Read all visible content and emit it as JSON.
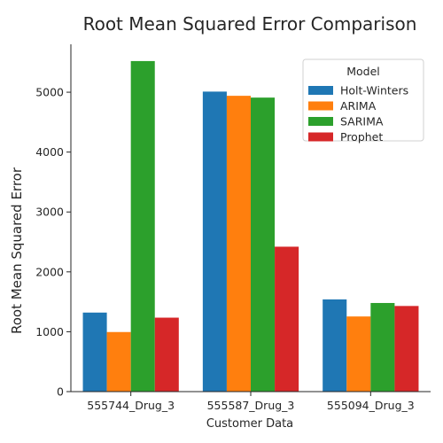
{
  "chart_data": {
    "type": "bar",
    "title": "Root Mean Squared Error Comparison",
    "xlabel": "Customer Data",
    "ylabel": "Root Mean Squared Error",
    "categories": [
      "555744_Drug_3",
      "555587_Drug_3",
      "555094_Drug_3"
    ],
    "ylim": [
      0,
      5800
    ],
    "yticks": [
      0,
      1000,
      2000,
      3000,
      4000,
      5000
    ],
    "legend": {
      "title": "Model",
      "placement": "top-right"
    },
    "grid": false,
    "series": [
      {
        "name": "Holt-Winters",
        "color": "#1f77b4",
        "values": [
          1320,
          5010,
          1540
        ]
      },
      {
        "name": "ARIMA",
        "color": "#ff7f0e",
        "values": [
          995,
          4940,
          1255
        ]
      },
      {
        "name": "SARIMA",
        "color": "#2ca02c",
        "values": [
          5520,
          4910,
          1480
        ]
      },
      {
        "name": "Prophet",
        "color": "#d62728",
        "values": [
          1235,
          2420,
          1430
        ]
      }
    ]
  }
}
